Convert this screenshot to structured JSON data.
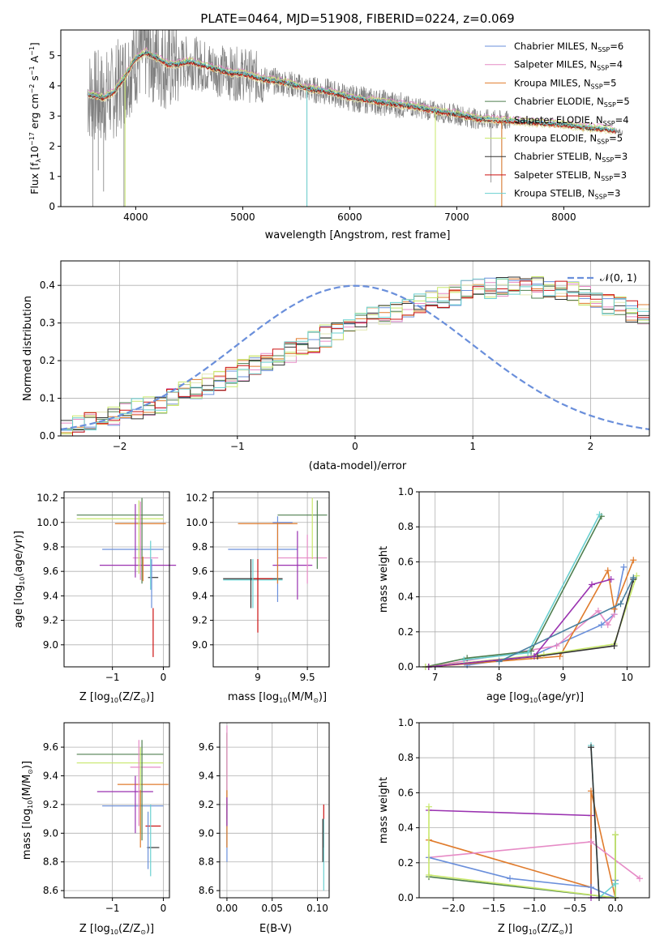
{
  "title": "PLATE=0464, MJD=51908, FIBERID=0224, z=0.069",
  "colors": {
    "grid": "#b0b0b0",
    "spectrum": "#808080",
    "series": [
      "#6a8fdb",
      "#e68bc6",
      "#e07b2c",
      "#4f7f4f",
      "#e4e8b4",
      "#c8e86b",
      "#333333",
      "#cc1111",
      "#6ad0d0"
    ],
    "purple": "#9a32b0"
  },
  "legend_spectrum": [
    {
      "name": "Chabrier MILES, N",
      "sub": "SSP",
      "suffix": "=6",
      "color": "#6a8fdb"
    },
    {
      "name": "Salpeter MILES, N",
      "sub": "SSP",
      "suffix": "=4",
      "color": "#e68bc6"
    },
    {
      "name": "Kroupa MILES, N",
      "sub": "SSP",
      "suffix": "=5",
      "color": "#e07b2c"
    },
    {
      "name": "Chabrier ELODIE, N",
      "sub": "SSP",
      "suffix": "=5",
      "color": "#4f7f4f"
    },
    {
      "name": "Salpeter ELODIE, N",
      "sub": "SSP",
      "suffix": "=4",
      "color": "#e4e8b4"
    },
    {
      "name": "Kroupa ELODIE, N",
      "sub": "SSP",
      "suffix": "=5",
      "color": "#c8e86b"
    },
    {
      "name": "Chabrier STELIB, N",
      "sub": "SSP",
      "suffix": "=3",
      "color": "#333333"
    },
    {
      "name": "Salpeter STELIB, N",
      "sub": "SSP",
      "suffix": "=3",
      "color": "#cc1111"
    },
    {
      "name": "Kroupa STELIB, N",
      "sub": "SSP",
      "suffix": "=3",
      "color": "#6ad0d0"
    }
  ],
  "chart_data": [
    {
      "type": "line",
      "panel": "spectrum",
      "xlabel": "wavelength [Angstrom, rest frame]",
      "ylabel_parts": [
        "Flux [f",
        "λ",
        "10",
        "−17",
        " erg cm",
        "−2",
        " s",
        "−1",
        " A",
        "−1",
        "]"
      ],
      "xlim": [
        3300,
        8800
      ],
      "ylim": [
        0,
        5.85
      ],
      "xticks": [
        4000,
        5000,
        6000,
        7000,
        8000
      ],
      "yticks": [
        0,
        1,
        2,
        3,
        4,
        5
      ],
      "model_x": [
        3550,
        3700,
        3800,
        3900,
        3950,
        4000,
        4100,
        4200,
        4300,
        4400,
        4500,
        4600,
        4700,
        4800,
        4900,
        5000,
        5200,
        5400,
        5600,
        5800,
        6000,
        6200,
        6400,
        6600,
        6800,
        7000,
        7200,
        7400,
        7600,
        7800,
        8000,
        8200,
        8400,
        8550
      ],
      "model_y": [
        3.7,
        3.6,
        3.8,
        4.3,
        4.6,
        4.9,
        5.1,
        4.9,
        4.7,
        4.7,
        4.8,
        4.7,
        4.6,
        4.5,
        4.4,
        4.4,
        4.2,
        4.1,
        3.9,
        3.8,
        3.6,
        3.5,
        3.4,
        3.3,
        3.15,
        3.05,
        2.9,
        2.85,
        2.8,
        2.75,
        2.7,
        2.6,
        2.55,
        2.45
      ]
    },
    {
      "type": "bar",
      "panel": "residual histogram",
      "xlabel": "(data-model)/error",
      "ylabel": "Normed distribution",
      "xlim": [
        -2.5,
        2.5
      ],
      "ylim": [
        0,
        0.465
      ],
      "xticks": [
        -2,
        -1,
        0,
        1,
        2
      ],
      "yticks": [
        0.0,
        0.1,
        0.2,
        0.3,
        0.4
      ],
      "legend": "𝒩(0, 1)",
      "bin_width": 0.1,
      "bins_start": -2.5,
      "base_values": [
        0.018,
        0.025,
        0.035,
        0.045,
        0.05,
        0.06,
        0.07,
        0.085,
        0.09,
        0.1,
        0.115,
        0.125,
        0.14,
        0.15,
        0.16,
        0.175,
        0.19,
        0.2,
        0.21,
        0.225,
        0.24,
        0.25,
        0.265,
        0.28,
        0.29,
        0.3,
        0.315,
        0.325,
        0.33,
        0.345,
        0.35,
        0.36,
        0.37,
        0.375,
        0.385,
        0.39,
        0.39,
        0.395,
        0.4,
        0.4,
        0.395,
        0.39,
        0.385,
        0.38,
        0.37,
        0.36,
        0.35,
        0.34,
        0.33,
        0.32,
        0.305,
        0.29,
        0.28,
        0.265,
        0.25,
        0.24,
        0.225,
        0.21,
        0.195,
        0.18,
        0.17,
        0.155,
        0.14,
        0.125,
        0.11,
        0.1,
        0.09,
        0.075,
        0.065,
        0.055,
        0.05,
        0.045,
        0.04,
        0.035,
        0.03,
        0.028,
        0.026,
        0.025,
        0.025,
        0.025
      ]
    },
    {
      "type": "scatter",
      "panel": "age vs Z",
      "xlabel_parts": [
        "Z [log",
        "10",
        "(Z/Z",
        "⊙",
        ")]"
      ],
      "ylabel_parts": [
        "age  [log",
        "10",
        "(age/yr)]"
      ],
      "xlim": [
        -1.95,
        0.12
      ],
      "ylim": [
        8.82,
        10.25
      ],
      "xticks": [
        -1,
        0
      ],
      "yticks": [
        9.0,
        9.2,
        9.4,
        9.6,
        9.8,
        10.0,
        10.2
      ]
    },
    {
      "type": "scatter",
      "panel": "age vs mass",
      "xlabel_parts": [
        "mass [log",
        "10",
        "(M/M",
        "⊙",
        ")]"
      ],
      "xlim": [
        8.55,
        9.72
      ],
      "ylim": [
        8.82,
        10.25
      ],
      "xticks": [
        9.0,
        9.5
      ],
      "yticks": [
        9.0,
        9.2,
        9.4,
        9.6,
        9.8,
        10.0,
        10.2
      ]
    },
    {
      "type": "line",
      "panel": "mass weight vs age",
      "xlabel_parts": [
        "age  [log",
        "10",
        "(age/yr)]"
      ],
      "ylabel": "mass weight",
      "xlim": [
        6.75,
        10.35
      ],
      "ylim": [
        0,
        1.0
      ],
      "xticks": [
        7,
        8,
        9,
        10
      ],
      "yticks": [
        0.0,
        0.2,
        0.4,
        0.6,
        0.8,
        1.0
      ],
      "series": [
        {
          "color": "#6a8fdb",
          "x": [
            7.5,
            8.5,
            9.6,
            9.8,
            9.95
          ],
          "y": [
            0.01,
            0.06,
            0.24,
            0.3,
            0.57
          ]
        },
        {
          "color": "#e68bc6",
          "x": [
            6.9,
            8.9,
            9.55,
            9.7,
            9.8
          ],
          "y": [
            0.0,
            0.12,
            0.32,
            0.24,
            0.3
          ]
        },
        {
          "color": "#e07b2c",
          "x": [
            6.9,
            8.95,
            9.7,
            9.8,
            10.1
          ],
          "y": [
            0.0,
            0.06,
            0.55,
            0.33,
            0.61
          ]
        },
        {
          "color": "#4f7f4f",
          "x": [
            6.85,
            7.5,
            8.5,
            9.6
          ],
          "y": [
            0.0,
            0.05,
            0.09,
            0.86
          ]
        },
        {
          "color": "#c8e86b",
          "x": [
            6.85,
            8.7,
            9.8,
            10.15
          ],
          "y": [
            0.0,
            0.07,
            0.13,
            0.52
          ]
        },
        {
          "color": "#333333",
          "x": [
            6.9,
            8.6,
            9.8,
            10.1
          ],
          "y": [
            0.0,
            0.06,
            0.12,
            0.5
          ]
        },
        {
          "color": "#9a32b0",
          "x": [
            6.9,
            8.55,
            9.45,
            9.75
          ],
          "y": [
            0.0,
            0.06,
            0.47,
            0.5
          ]
        },
        {
          "color": "#6ad0d0",
          "x": [
            7.45,
            8.45,
            9.57
          ],
          "y": [
            0.04,
            0.08,
            0.87
          ]
        },
        {
          "color": "#4a7fa0",
          "x": [
            8.0,
            9.9,
            10.1
          ],
          "y": [
            0.03,
            0.36,
            0.51
          ]
        }
      ]
    },
    {
      "type": "scatter",
      "panel": "mass vs Z",
      "xlabel_parts": [
        "Z [log",
        "10",
        "(Z/Z",
        "⊙",
        ")]"
      ],
      "ylabel_parts": [
        "mass [log",
        "10",
        "(M/M",
        "⊙",
        ")]"
      ],
      "xlim": [
        -1.95,
        0.12
      ],
      "ylim": [
        8.55,
        9.77
      ],
      "xticks": [
        -1,
        0
      ],
      "yticks": [
        8.6,
        8.8,
        9.0,
        9.2,
        9.4,
        9.6
      ]
    },
    {
      "type": "scatter",
      "panel": "mass vs E(B-V)",
      "xlabel": "E(B-V)",
      "xlim": [
        -0.008,
        0.113
      ],
      "ylim": [
        8.55,
        9.77
      ],
      "xticks": [
        0.0,
        0.05,
        0.1
      ],
      "xticklabels": [
        "0.00",
        "0.05",
        "0.10"
      ],
      "yticks": [
        8.6,
        8.8,
        9.0,
        9.2,
        9.4,
        9.6
      ]
    },
    {
      "type": "line",
      "panel": "mass weight vs Z",
      "xlabel_parts": [
        "Z [log",
        "10",
        "(Z/Z",
        "⊙",
        ")]"
      ],
      "ylabel": "mass weight",
      "xlim": [
        -2.42,
        0.42
      ],
      "ylim": [
        0,
        1.0
      ],
      "xticks": [
        -2.0,
        -1.5,
        -1.0,
        -0.5,
        0.0
      ],
      "xticklabels": [
        "−2.0",
        "−1.5",
        "−1.0",
        "−0.5",
        "0.0"
      ],
      "yticks": [
        0.0,
        0.2,
        0.4,
        0.6,
        0.8,
        1.0
      ],
      "series": [
        {
          "color": "#9a32b0",
          "x": [
            -2.3,
            -0.3,
            -0.3,
            0.0
          ],
          "y": [
            0.5,
            0.47,
            0.0,
            0.0
          ]
        },
        {
          "color": "#e07b2c",
          "x": [
            -2.3,
            -0.3,
            -0.3,
            0.0
          ],
          "y": [
            0.33,
            0.06,
            0.61,
            0.0
          ]
        },
        {
          "color": "#e68bc6",
          "x": [
            -2.3,
            -0.3,
            0.3
          ],
          "y": [
            0.23,
            0.32,
            0.11
          ]
        },
        {
          "color": "#6a8fdb",
          "x": [
            -2.3,
            -1.3,
            -0.3,
            0.0,
            0.0
          ],
          "y": [
            0.23,
            0.11,
            0.06,
            0.0,
            0.1
          ]
        },
        {
          "color": "#4f7f4f",
          "x": [
            -2.3,
            0.0,
            0.0
          ],
          "y": [
            0.12,
            0.0,
            0.36
          ]
        },
        {
          "color": "#c8e86b",
          "x": [
            -2.3,
            -2.3,
            0.0,
            0.0
          ],
          "y": [
            0.52,
            0.13,
            0.0,
            0.36
          ]
        },
        {
          "color": "#6ad0d0",
          "x": [
            -0.3,
            -0.2,
            0.0
          ],
          "y": [
            0.87,
            0.0,
            0.08
          ]
        },
        {
          "color": "#333333",
          "x": [
            -0.3,
            -0.2
          ],
          "y": [
            0.86,
            0.0
          ]
        }
      ]
    }
  ]
}
